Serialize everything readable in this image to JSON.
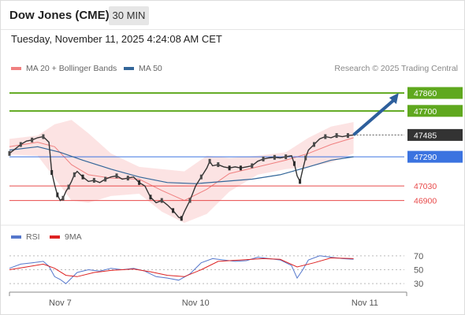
{
  "header": {
    "title": "Dow Jones (CME)",
    "timeframe": "30 MIN",
    "datetime": "Tuesday, November 11, 2025 4:24:08 AM CET"
  },
  "legend": {
    "bollinger_label": "MA 20 + Bollinger Bands",
    "ma50_label": "MA 50",
    "copyright": "Research © 2025 Trading Central"
  },
  "rsi_legend": {
    "rsi_label": "RSI",
    "ma_label": "9MA"
  },
  "colors": {
    "resistance": "#5fa81e",
    "pivot": "#3b73e0",
    "support": "#e84a4a",
    "current": "#333333",
    "bollinger": "#f08080",
    "ma50": "#336699",
    "rsi": "#5577cc",
    "rsi_ma": "#dd2222",
    "arrow": "#2d5f9c"
  },
  "chart_data": {
    "type": "line",
    "price_ylim": [
      46700,
      47980
    ],
    "x_tick_labels": [
      "Nov 7",
      "Nov 10",
      "Nov 11"
    ],
    "levels": [
      {
        "value": 47860,
        "label": "47860",
        "kind": "resistance"
      },
      {
        "value": 47700,
        "label": "47700",
        "kind": "resistance"
      },
      {
        "value": 47485,
        "label": "47485",
        "kind": "current"
      },
      {
        "value": 47290,
        "label": "47290",
        "kind": "pivot"
      },
      {
        "value": 47030,
        "label": "47030",
        "kind": "support"
      },
      {
        "value": 46900,
        "label": "46900",
        "kind": "support"
      }
    ],
    "price_series": [
      {
        "x": 0,
        "y": 47320
      },
      {
        "x": 2,
        "y": 47360
      },
      {
        "x": 4,
        "y": 47400
      },
      {
        "x": 6,
        "y": 47430
      },
      {
        "x": 8,
        "y": 47440
      },
      {
        "x": 10,
        "y": 47460
      },
      {
        "x": 12,
        "y": 47470
      },
      {
        "x": 14,
        "y": 47420
      },
      {
        "x": 15,
        "y": 47150
      },
      {
        "x": 16,
        "y": 47040
      },
      {
        "x": 17,
        "y": 46950
      },
      {
        "x": 18,
        "y": 46900
      },
      {
        "x": 19,
        "y": 46920
      },
      {
        "x": 20,
        "y": 46980
      },
      {
        "x": 21,
        "y": 47020
      },
      {
        "x": 22,
        "y": 47070
      },
      {
        "x": 23,
        "y": 47130
      },
      {
        "x": 24,
        "y": 47160
      },
      {
        "x": 26,
        "y": 47110
      },
      {
        "x": 28,
        "y": 47070
      },
      {
        "x": 30,
        "y": 47080
      },
      {
        "x": 32,
        "y": 47060
      },
      {
        "x": 34,
        "y": 47090
      },
      {
        "x": 36,
        "y": 47110
      },
      {
        "x": 38,
        "y": 47120
      },
      {
        "x": 40,
        "y": 47090
      },
      {
        "x": 42,
        "y": 47100
      },
      {
        "x": 44,
        "y": 47110
      },
      {
        "x": 46,
        "y": 47060
      },
      {
        "x": 48,
        "y": 47030
      },
      {
        "x": 50,
        "y": 46930
      },
      {
        "x": 52,
        "y": 46880
      },
      {
        "x": 54,
        "y": 46900
      },
      {
        "x": 56,
        "y": 46860
      },
      {
        "x": 58,
        "y": 46810
      },
      {
        "x": 60,
        "y": 46750
      },
      {
        "x": 61,
        "y": 46740
      },
      {
        "x": 62,
        "y": 46800
      },
      {
        "x": 64,
        "y": 46900
      },
      {
        "x": 66,
        "y": 47030
      },
      {
        "x": 68,
        "y": 47110
      },
      {
        "x": 70,
        "y": 47190
      },
      {
        "x": 71,
        "y": 47250
      },
      {
        "x": 72,
        "y": 47210
      },
      {
        "x": 74,
        "y": 47220
      },
      {
        "x": 76,
        "y": 47200
      },
      {
        "x": 78,
        "y": 47190
      },
      {
        "x": 80,
        "y": 47200
      },
      {
        "x": 82,
        "y": 47190
      },
      {
        "x": 84,
        "y": 47200
      },
      {
        "x": 86,
        "y": 47210
      },
      {
        "x": 88,
        "y": 47250
      },
      {
        "x": 90,
        "y": 47270
      },
      {
        "x": 92,
        "y": 47280
      },
      {
        "x": 94,
        "y": 47285
      },
      {
        "x": 96,
        "y": 47280
      },
      {
        "x": 98,
        "y": 47290
      },
      {
        "x": 100,
        "y": 47300
      },
      {
        "x": 101,
        "y": 47230
      },
      {
        "x": 102,
        "y": 47120
      },
      {
        "x": 103,
        "y": 47070
      },
      {
        "x": 104,
        "y": 47180
      },
      {
        "x": 105,
        "y": 47280
      },
      {
        "x": 106,
        "y": 47350
      },
      {
        "x": 108,
        "y": 47400
      },
      {
        "x": 110,
        "y": 47450
      },
      {
        "x": 112,
        "y": 47470
      },
      {
        "x": 114,
        "y": 47460
      },
      {
        "x": 116,
        "y": 47480
      },
      {
        "x": 118,
        "y": 47470
      },
      {
        "x": 120,
        "y": 47480
      },
      {
        "x": 122,
        "y": 47485
      }
    ],
    "ma50_series": [
      {
        "x": 0,
        "y": 47350
      },
      {
        "x": 10,
        "y": 47380
      },
      {
        "x": 18,
        "y": 47330
      },
      {
        "x": 26,
        "y": 47260
      },
      {
        "x": 36,
        "y": 47180
      },
      {
        "x": 46,
        "y": 47110
      },
      {
        "x": 56,
        "y": 47060
      },
      {
        "x": 66,
        "y": 47050
      },
      {
        "x": 76,
        "y": 47070
      },
      {
        "x": 86,
        "y": 47090
      },
      {
        "x": 96,
        "y": 47130
      },
      {
        "x": 106,
        "y": 47200
      },
      {
        "x": 114,
        "y": 47260
      },
      {
        "x": 122,
        "y": 47290
      }
    ],
    "bb_mid_series": [
      {
        "x": 0,
        "y": 47380
      },
      {
        "x": 10,
        "y": 47420
      },
      {
        "x": 16,
        "y": 47380
      },
      {
        "x": 22,
        "y": 47220
      },
      {
        "x": 28,
        "y": 47130
      },
      {
        "x": 36,
        "y": 47100
      },
      {
        "x": 46,
        "y": 47090
      },
      {
        "x": 54,
        "y": 46990
      },
      {
        "x": 62,
        "y": 46900
      },
      {
        "x": 70,
        "y": 47000
      },
      {
        "x": 78,
        "y": 47140
      },
      {
        "x": 88,
        "y": 47200
      },
      {
        "x": 98,
        "y": 47260
      },
      {
        "x": 106,
        "y": 47320
      },
      {
        "x": 114,
        "y": 47400
      },
      {
        "x": 122,
        "y": 47460
      }
    ],
    "bb_upper_series": [
      {
        "x": 0,
        "y": 47450
      },
      {
        "x": 10,
        "y": 47480
      },
      {
        "x": 16,
        "y": 47580
      },
      {
        "x": 22,
        "y": 47620
      },
      {
        "x": 28,
        "y": 47500
      },
      {
        "x": 36,
        "y": 47320
      },
      {
        "x": 46,
        "y": 47200
      },
      {
        "x": 54,
        "y": 47180
      },
      {
        "x": 62,
        "y": 47160
      },
      {
        "x": 70,
        "y": 47300
      },
      {
        "x": 78,
        "y": 47280
      },
      {
        "x": 88,
        "y": 47300
      },
      {
        "x": 98,
        "y": 47330
      },
      {
        "x": 106,
        "y": 47460
      },
      {
        "x": 114,
        "y": 47560
      },
      {
        "x": 122,
        "y": 47600
      }
    ],
    "bb_lower_series": [
      {
        "x": 0,
        "y": 47310
      },
      {
        "x": 10,
        "y": 47300
      },
      {
        "x": 16,
        "y": 47100
      },
      {
        "x": 22,
        "y": 46900
      },
      {
        "x": 28,
        "y": 46880
      },
      {
        "x": 36,
        "y": 46940
      },
      {
        "x": 46,
        "y": 46960
      },
      {
        "x": 54,
        "y": 46800
      },
      {
        "x": 62,
        "y": 46700
      },
      {
        "x": 70,
        "y": 46780
      },
      {
        "x": 78,
        "y": 46980
      },
      {
        "x": 88,
        "y": 47130
      },
      {
        "x": 98,
        "y": 47180
      },
      {
        "x": 106,
        "y": 47200
      },
      {
        "x": 114,
        "y": 47240
      },
      {
        "x": 122,
        "y": 47320
      }
    ],
    "projection": {
      "from": {
        "x": 122,
        "y": 47485
      },
      "to": {
        "x": 138,
        "y": 47860
      }
    },
    "rsi_ticks": [
      70,
      50,
      30
    ],
    "rsi_ylim": [
      20,
      80
    ],
    "rsi_series": [
      {
        "x": 0,
        "y": 52
      },
      {
        "x": 4,
        "y": 58
      },
      {
        "x": 8,
        "y": 60
      },
      {
        "x": 12,
        "y": 62
      },
      {
        "x": 14,
        "y": 55
      },
      {
        "x": 16,
        "y": 40
      },
      {
        "x": 18,
        "y": 36
      },
      {
        "x": 20,
        "y": 30
      },
      {
        "x": 22,
        "y": 38
      },
      {
        "x": 24,
        "y": 46
      },
      {
        "x": 28,
        "y": 50
      },
      {
        "x": 32,
        "y": 48
      },
      {
        "x": 36,
        "y": 52
      },
      {
        "x": 40,
        "y": 50
      },
      {
        "x": 44,
        "y": 52
      },
      {
        "x": 48,
        "y": 48
      },
      {
        "x": 52,
        "y": 40
      },
      {
        "x": 56,
        "y": 38
      },
      {
        "x": 60,
        "y": 35
      },
      {
        "x": 64,
        "y": 44
      },
      {
        "x": 68,
        "y": 60
      },
      {
        "x": 72,
        "y": 66
      },
      {
        "x": 76,
        "y": 64
      },
      {
        "x": 80,
        "y": 62
      },
      {
        "x": 84,
        "y": 63
      },
      {
        "x": 88,
        "y": 68
      },
      {
        "x": 92,
        "y": 66
      },
      {
        "x": 96,
        "y": 64
      },
      {
        "x": 100,
        "y": 56
      },
      {
        "x": 102,
        "y": 38
      },
      {
        "x": 104,
        "y": 50
      },
      {
        "x": 106,
        "y": 64
      },
      {
        "x": 110,
        "y": 70
      },
      {
        "x": 114,
        "y": 68
      },
      {
        "x": 118,
        "y": 66
      },
      {
        "x": 122,
        "y": 65
      }
    ],
    "rsi_ma_series": [
      {
        "x": 0,
        "y": 50
      },
      {
        "x": 6,
        "y": 54
      },
      {
        "x": 12,
        "y": 58
      },
      {
        "x": 16,
        "y": 52
      },
      {
        "x": 20,
        "y": 42
      },
      {
        "x": 24,
        "y": 40
      },
      {
        "x": 30,
        "y": 46
      },
      {
        "x": 36,
        "y": 49
      },
      {
        "x": 44,
        "y": 51
      },
      {
        "x": 50,
        "y": 47
      },
      {
        "x": 56,
        "y": 42
      },
      {
        "x": 62,
        "y": 40
      },
      {
        "x": 68,
        "y": 50
      },
      {
        "x": 74,
        "y": 62
      },
      {
        "x": 82,
        "y": 64
      },
      {
        "x": 90,
        "y": 66
      },
      {
        "x": 96,
        "y": 65
      },
      {
        "x": 102,
        "y": 54
      },
      {
        "x": 108,
        "y": 60
      },
      {
        "x": 114,
        "y": 67
      },
      {
        "x": 122,
        "y": 66
      }
    ]
  }
}
